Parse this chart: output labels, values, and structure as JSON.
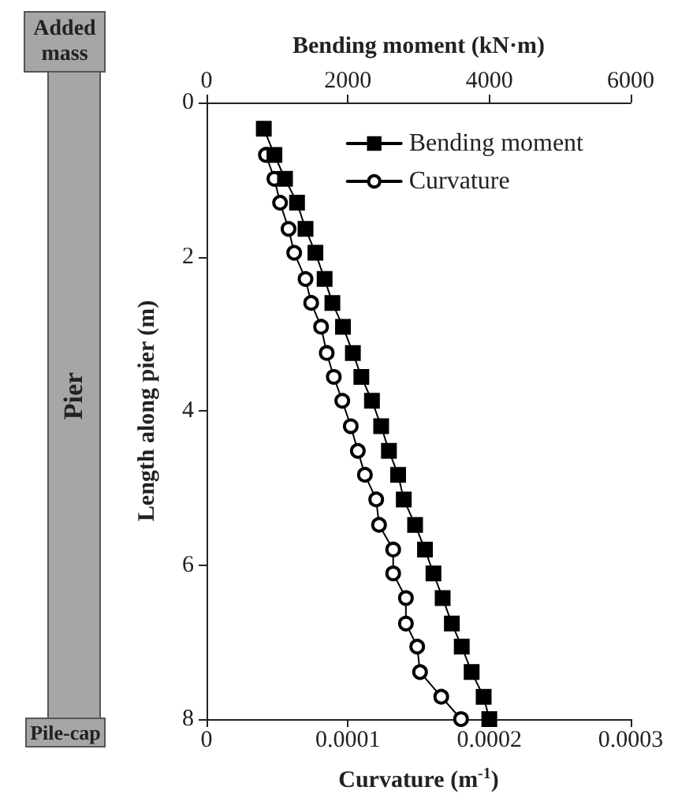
{
  "chart_data": {
    "type": "line",
    "x2label": "Bending moment (kN·m)",
    "xlabel": "Curvature (m$^{-1}$)",
    "ylabel": "Length along pier (m)",
    "annotations": [
      "Added mass",
      "Pier",
      "Pile-cap"
    ],
    "series": [
      {
        "name": "Bending moment",
        "color": "#000000",
        "marker": "square",
        "axis": "x2",
        "x": [
          810,
          960,
          1110,
          1280,
          1400,
          1540,
          1670,
          1780,
          1930,
          2070,
          2190,
          2340,
          2470,
          2580,
          2710,
          2790,
          2950,
          3090,
          3210,
          3340,
          3470,
          3610,
          3750,
          3920,
          4000
        ],
        "values": [
          0.34,
          0.68,
          0.99,
          1.3,
          1.64,
          1.95,
          2.29,
          2.6,
          2.91,
          3.25,
          3.56,
          3.87,
          4.2,
          4.52,
          4.83,
          5.15,
          5.48,
          5.8,
          6.11,
          6.43,
          6.76,
          7.06,
          7.39,
          7.71,
          8.0
        ]
      },
      {
        "name": "Curvature",
        "color": "#000000",
        "marker": "circle",
        "x": [
          4.2e-05,
          4.8e-05,
          5.2e-05,
          5.8e-05,
          6.2e-05,
          7e-05,
          7.4e-05,
          8.1e-05,
          8.5e-05,
          9e-05,
          9.6e-05,
          0.000102,
          0.000107,
          0.000112,
          0.00012,
          0.000122,
          0.000132,
          0.000132,
          0.000141,
          0.000141,
          0.000149,
          0.000151,
          0.000166,
          0.00018
        ],
        "values": [
          0.68,
          0.99,
          1.3,
          1.64,
          1.95,
          2.29,
          2.6,
          2.91,
          3.25,
          3.56,
          3.87,
          4.2,
          4.52,
          4.83,
          5.15,
          5.48,
          5.8,
          6.11,
          6.43,
          6.76,
          7.06,
          7.39,
          7.71,
          8.0
        ]
      }
    ],
    "xlim": [
      0,
      0.0003
    ],
    "xticks": [
      0,
      0.0001,
      0.0002,
      0.0003
    ],
    "x2lim": [
      0,
      6000
    ],
    "x2ticks": [
      0,
      2000,
      4000,
      6000
    ],
    "ylim": [
      8,
      0
    ],
    "yticks": [
      0,
      2,
      4,
      6,
      8
    ],
    "grid": false,
    "legend": "top right"
  }
}
